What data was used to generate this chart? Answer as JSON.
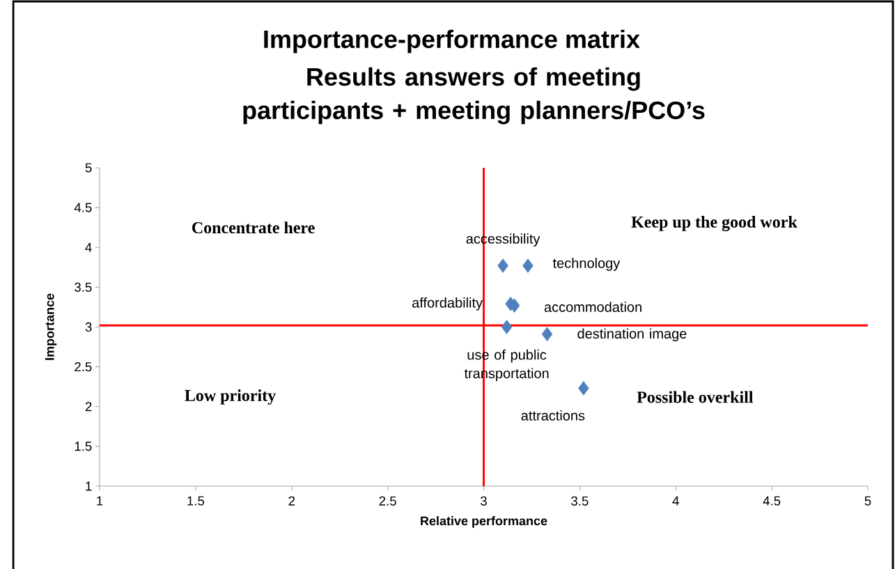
{
  "chart_data": {
    "type": "scatter",
    "title": "Importance-performance matrix",
    "subtitle": "Results answers of meeting participants + meeting planners/PCO’s",
    "xlabel": "Relative performance",
    "ylabel": "Importance",
    "x": [
      3.1,
      3.23,
      3.14,
      3.16,
      3.12,
      3.33,
      3.52
    ],
    "series": [
      {
        "color": "#4f81bd",
        "values": [
          3.77,
          3.77,
          3.29,
          3.27,
          3.0,
          2.91,
          2.23
        ]
      }
    ],
    "marker": "diamond",
    "grid": false,
    "xlim": [
      1,
      5
    ],
    "ylim": [
      1,
      5
    ],
    "xticks": [
      1,
      1.5,
      2,
      2.5,
      3,
      3.5,
      4,
      4.5,
      5
    ],
    "yticks": [
      1,
      1.5,
      2,
      2.5,
      3,
      3.5,
      4,
      4.5,
      5
    ],
    "ref_lines": [
      {
        "axis": "x",
        "value": 3,
        "color": "#ff0000"
      },
      {
        "axis": "y",
        "value": 3.02,
        "color": "#ff0000"
      }
    ],
    "annotations": [
      {
        "text": "accessibility",
        "x": 3.1,
        "y": 3.77
      },
      {
        "text": "technology",
        "x": 3.23,
        "y": 3.77
      },
      {
        "text": "affordability",
        "x": 3.14,
        "y": 3.29
      },
      {
        "text": "accommodation",
        "x": 3.16,
        "y": 3.27
      },
      {
        "text": "use of public transportation",
        "x": 3.12,
        "y": 3.0
      },
      {
        "text": "destination image",
        "x": 3.33,
        "y": 2.91
      },
      {
        "text": "attractions",
        "x": 3.52,
        "y": 2.23
      },
      "Concentrate here",
      "Keep up the good work",
      "Low priority",
      "Possible overkill"
    ]
  }
}
